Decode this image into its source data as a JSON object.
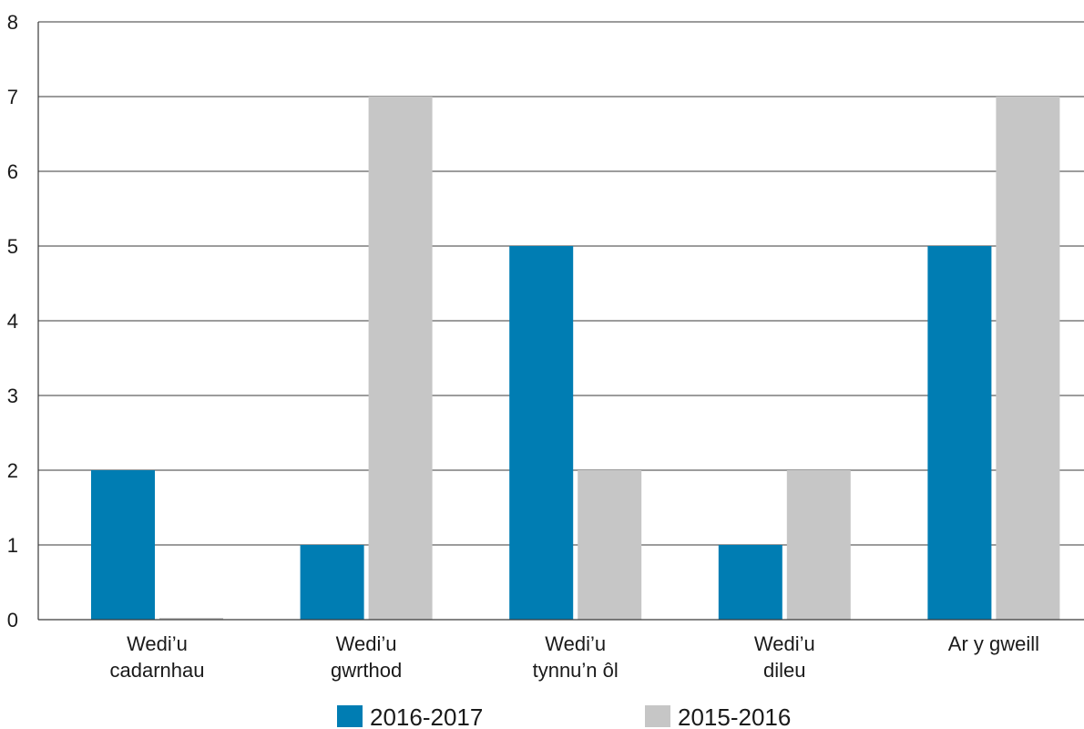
{
  "chart_data": {
    "type": "bar",
    "categories": [
      [
        "Wedi’u",
        "cadarnhau"
      ],
      [
        "Wedi’u",
        "gwrthod"
      ],
      [
        "Wedi’u",
        "tynnu’n ôl"
      ],
      [
        "Wedi’u",
        "dileu"
      ],
      [
        "Ar y gweill"
      ]
    ],
    "series": [
      {
        "name": "2016-2017",
        "color": "#007db3",
        "values": [
          2,
          1,
          5,
          1,
          5
        ]
      },
      {
        "name": "2015-2016",
        "color": "#c6c6c6",
        "values": [
          0,
          7,
          2,
          2,
          7
        ]
      }
    ],
    "ylim": [
      0,
      8
    ],
    "yticks": [
      0,
      1,
      2,
      3,
      4,
      5,
      6,
      7,
      8
    ],
    "grid": true,
    "legend_position": "bottom"
  }
}
